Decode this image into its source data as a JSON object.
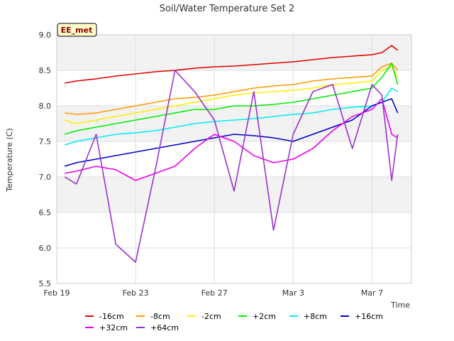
{
  "chart_data": {
    "type": "line",
    "title": "Soil/Water Temperature Set 2",
    "xlabel": "Time",
    "ylabel": "Temperature (C)",
    "badge": "EE_met",
    "x_ticks": [
      "Feb 19",
      "Feb 23",
      "Feb 27",
      "Mar 3",
      "Mar 7"
    ],
    "x_tick_days": [
      0,
      4,
      8,
      12,
      16
    ],
    "xlim_days": [
      0,
      18
    ],
    "ylim": [
      5.5,
      9.0
    ],
    "y_ticks": [
      5.5,
      6.0,
      6.5,
      7.0,
      7.5,
      8.0,
      8.5,
      9.0
    ],
    "grid": true,
    "bands": [
      [
        6.5,
        7.0
      ],
      [
        7.5,
        8.0
      ],
      [
        8.5,
        9.0
      ]
    ],
    "legend_position": "bottom",
    "x_days": [
      0.4,
      1,
      2,
      3,
      4,
      5,
      6,
      7,
      8,
      9,
      10,
      11,
      12,
      13,
      14,
      15,
      16,
      16.5,
      17,
      17.3
    ],
    "series": [
      {
        "name": "-16cm",
        "color": "#e00000",
        "values": [
          8.32,
          8.35,
          8.38,
          8.42,
          8.45,
          8.48,
          8.5,
          8.53,
          8.55,
          8.56,
          8.58,
          8.6,
          8.62,
          8.65,
          8.68,
          8.7,
          8.72,
          8.75,
          8.85,
          8.78
        ]
      },
      {
        "name": "-8cm",
        "color": "#ff9900",
        "values": [
          7.9,
          7.88,
          7.9,
          7.95,
          8.0,
          8.05,
          8.1,
          8.12,
          8.15,
          8.2,
          8.25,
          8.28,
          8.3,
          8.35,
          8.38,
          8.4,
          8.42,
          8.55,
          8.6,
          8.5
        ]
      },
      {
        "name": "-2cm",
        "color": "#ffee00",
        "values": [
          7.8,
          7.75,
          7.8,
          7.85,
          7.9,
          7.95,
          8.0,
          8.05,
          8.1,
          8.15,
          8.18,
          8.2,
          8.22,
          8.25,
          8.3,
          8.32,
          8.35,
          8.5,
          8.55,
          8.4
        ]
      },
      {
        "name": "+2cm",
        "color": "#00ee00",
        "values": [
          7.6,
          7.65,
          7.7,
          7.75,
          7.8,
          7.85,
          7.9,
          7.95,
          7.95,
          8.0,
          8.0,
          8.02,
          8.05,
          8.1,
          8.15,
          8.2,
          8.25,
          8.4,
          8.6,
          8.3
        ]
      },
      {
        "name": "+8cm",
        "color": "#00eeee",
        "values": [
          7.45,
          7.5,
          7.55,
          7.6,
          7.62,
          7.65,
          7.7,
          7.75,
          7.78,
          7.8,
          7.82,
          7.85,
          7.88,
          7.9,
          7.95,
          7.98,
          8.0,
          8.05,
          8.25,
          8.2
        ]
      },
      {
        "name": "+16cm",
        "color": "#0000cc",
        "values": [
          7.15,
          7.2,
          7.25,
          7.3,
          7.35,
          7.4,
          7.45,
          7.5,
          7.55,
          7.6,
          7.58,
          7.55,
          7.5,
          7.6,
          7.7,
          7.8,
          8.0,
          8.05,
          8.1,
          7.9
        ]
      },
      {
        "name": "+32cm",
        "color": "#ee00ee",
        "values": [
          7.05,
          7.08,
          7.15,
          7.1,
          6.95,
          7.05,
          7.15,
          7.4,
          7.6,
          7.5,
          7.3,
          7.2,
          7.25,
          7.4,
          7.65,
          7.85,
          7.95,
          8.1,
          7.6,
          7.55
        ]
      },
      {
        "name": "+64cm",
        "color": "#9933cc",
        "values": [
          7.0,
          6.9,
          7.6,
          6.05,
          5.8,
          7.1,
          8.5,
          8.2,
          7.8,
          6.8,
          8.2,
          6.25,
          7.6,
          8.2,
          8.3,
          7.4,
          8.3,
          8.15,
          6.95,
          7.6
        ]
      }
    ]
  }
}
